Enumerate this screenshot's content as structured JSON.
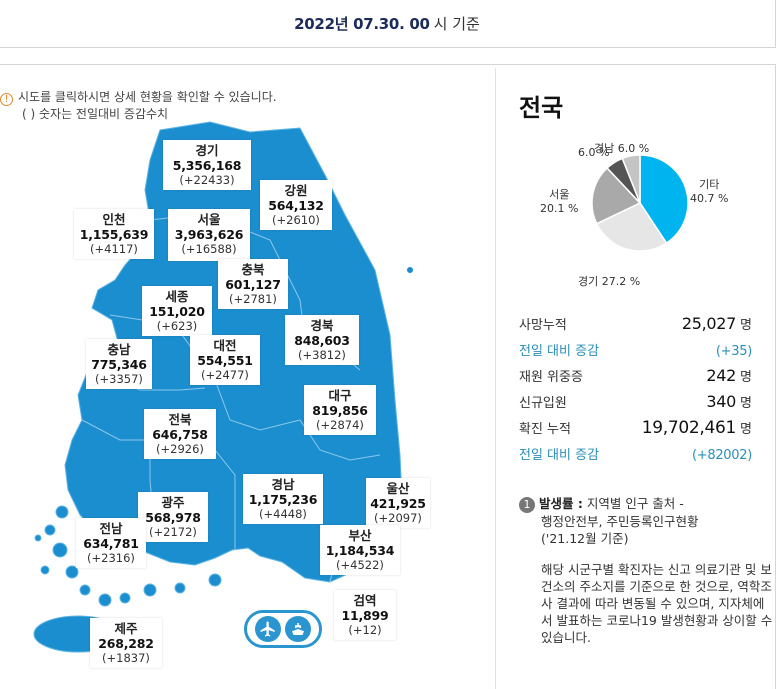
{
  "header": {
    "date": "2022년 07.30. 00",
    "suffix": "시 기준"
  },
  "notice": {
    "line1": "시도를 클릭하시면 상세 현황을 확인할 수 있습니다.",
    "line2": "( ) 숫자는 전일대비 증감수치",
    "icon": "info-icon"
  },
  "map_color": "#1b8ecf",
  "regions": [
    {
      "id": "gyeonggi",
      "name": "경기",
      "count": "5,356,168",
      "change": "(+22433)"
    },
    {
      "id": "gangwon",
      "name": "강원",
      "count": "564,132",
      "change": "(+2610)"
    },
    {
      "id": "incheon",
      "name": "인천",
      "count": "1,155,639",
      "change": "(+4117)"
    },
    {
      "id": "seoul",
      "name": "서울",
      "count": "3,963,626",
      "change": "(+16588)"
    },
    {
      "id": "chungbuk",
      "name": "충북",
      "count": "601,127",
      "change": "(+2781)"
    },
    {
      "id": "sejong",
      "name": "세종",
      "count": "151,020",
      "change": "(+623)"
    },
    {
      "id": "chungnam",
      "name": "충남",
      "count": "775,346",
      "change": "(+3357)"
    },
    {
      "id": "daejeon",
      "name": "대전",
      "count": "554,551",
      "change": "(+2477)"
    },
    {
      "id": "gyeongbuk",
      "name": "경북",
      "count": "848,603",
      "change": "(+3812)"
    },
    {
      "id": "daegu",
      "name": "대구",
      "count": "819,856",
      "change": "(+2874)"
    },
    {
      "id": "jeonbuk",
      "name": "전북",
      "count": "646,758",
      "change": "(+2926)"
    },
    {
      "id": "gyeongnam",
      "name": "경남",
      "count": "1,175,236",
      "change": "(+4448)"
    },
    {
      "id": "ulsan",
      "name": "울산",
      "count": "421,925",
      "change": "(+2097)"
    },
    {
      "id": "gwangju",
      "name": "광주",
      "count": "568,978",
      "change": "(+2172)"
    },
    {
      "id": "jeonnam",
      "name": "전남",
      "count": "634,781",
      "change": "(+2316)"
    },
    {
      "id": "busan",
      "name": "부산",
      "count": "1,184,534",
      "change": "(+4522)"
    },
    {
      "id": "quarantine",
      "name": "검역",
      "count": "11,899",
      "change": "(+12)"
    },
    {
      "id": "jeju",
      "name": "제주",
      "count": "268,282",
      "change": "(+1837)"
    }
  ],
  "quarantine_icons": [
    "airplane-icon",
    "ship-icon"
  ],
  "panel": {
    "title": "전국",
    "pie": {
      "slices": [
        {
          "label": "기타",
          "value": 40.7,
          "value_text": "40.7 %",
          "color": "#00b5ef"
        },
        {
          "label": "경기",
          "value": 27.2,
          "value_text": "27.2 %",
          "color": "#e6e6e6"
        },
        {
          "label": "서울",
          "value": 20.1,
          "value_text": "20.1 %",
          "color": "#a9a9a9"
        },
        {
          "label": "",
          "value": 6.0,
          "value_text": "6.0 %",
          "color": "#555555"
        },
        {
          "label": "경남",
          "value": 6.0,
          "value_text": "6.0 %",
          "color": "#c4c4c4"
        }
      ]
    },
    "stats": [
      {
        "label": "사망누적",
        "value": "25,027",
        "unit": "명",
        "style": ""
      },
      {
        "label": "전일 대비 증감",
        "value": "(+35)",
        "unit": "",
        "style": "blue"
      },
      {
        "label": "재원 위중증",
        "value": "242",
        "unit": "명",
        "style": ""
      },
      {
        "label": "신규입원",
        "value": "340",
        "unit": "명",
        "style": ""
      },
      {
        "label": "확진 누적",
        "value": "19,702,461",
        "unit": "명",
        "style": "big"
      },
      {
        "label": "전일 대비 증감",
        "value": "(+82002)",
        "unit": "",
        "style": "blue"
      }
    ],
    "note": {
      "num": "1",
      "title": "발생률 :",
      "line1": "지역별 인구 출처 -",
      "line2": "행정안전부, 주민등록인구현황",
      "line3": "('21.12월 기준)",
      "body": "해당 시군구별 확진자는 신고 의료기관 및 보건소의 주소지를 기준으로 한 것으로, 역학조사 결과에 따라 변동될 수 있으며, 지자체에서 발표하는 코로나19 발생현황과 상이할 수 있습니다."
    }
  }
}
